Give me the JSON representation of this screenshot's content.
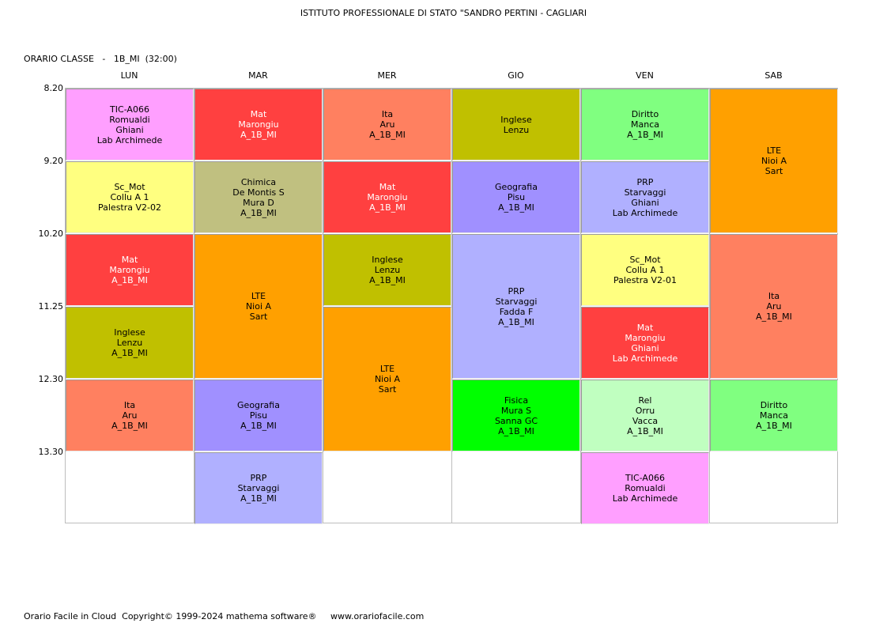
{
  "header": {
    "title": "ISTITUTO PROFESSIONALE DI STATO \"SANDRO PERTINI - CAGLIARI",
    "class_label": "ORARIO CLASSE   -   1B_MI  (32:00)"
  },
  "days": [
    "LUN",
    "MAR",
    "MER",
    "GIO",
    "VEN",
    "SAB"
  ],
  "times": [
    "8.20",
    "9.20",
    "10.20",
    "11.25",
    "12.30",
    "13.30"
  ],
  "colors": {
    "pink": "#ff9fff",
    "yellow": "#ffff80",
    "red": "#ff4040",
    "olive": "#c0c000",
    "salmon": "#ff8060",
    "khaki": "#c0c080",
    "orange": "#ffa000",
    "violet": "#a090ff",
    "lavender": "#b0b0ff",
    "green_bright": "#00ff00",
    "green_light": "#80ff80",
    "mint": "#c0ffc0"
  },
  "lessons": [
    {
      "day": 0,
      "start": 0,
      "span": 1,
      "color": "pink",
      "light": false,
      "lines": [
        "TIC-A066",
        "Romualdi",
        "Ghiani",
        "Lab Archimede"
      ]
    },
    {
      "day": 0,
      "start": 1,
      "span": 1,
      "color": "yellow",
      "light": false,
      "lines": [
        "Sc_Mot",
        "Collu A 1",
        "Palestra V2-02"
      ]
    },
    {
      "day": 0,
      "start": 2,
      "span": 1,
      "color": "red",
      "light": true,
      "lines": [
        "Mat",
        "Marongiu",
        "A_1B_MI"
      ]
    },
    {
      "day": 0,
      "start": 3,
      "span": 1,
      "color": "olive",
      "light": false,
      "lines": [
        "Inglese",
        "Lenzu",
        "A_1B_MI"
      ]
    },
    {
      "day": 0,
      "start": 4,
      "span": 1,
      "color": "salmon",
      "light": false,
      "lines": [
        "Ita",
        "Aru",
        "A_1B_MI"
      ]
    },
    {
      "day": 1,
      "start": 0,
      "span": 1,
      "color": "red",
      "light": true,
      "lines": [
        "Mat",
        "Marongiu",
        "A_1B_MI"
      ]
    },
    {
      "day": 1,
      "start": 1,
      "span": 1,
      "color": "khaki",
      "light": false,
      "lines": [
        "Chimica",
        "De Montis S",
        "Mura D",
        "A_1B_MI"
      ]
    },
    {
      "day": 1,
      "start": 2,
      "span": 2,
      "color": "orange",
      "light": false,
      "lines": [
        "LTE",
        "Nioi A",
        "Sart"
      ]
    },
    {
      "day": 1,
      "start": 4,
      "span": 1,
      "color": "violet",
      "light": false,
      "lines": [
        "Geografia",
        "Pisu",
        "A_1B_MI"
      ]
    },
    {
      "day": 1,
      "start": 5,
      "span": 1,
      "color": "lavender",
      "light": false,
      "lines": [
        "PRP",
        "Starvaggi",
        "A_1B_MI"
      ]
    },
    {
      "day": 2,
      "start": 0,
      "span": 1,
      "color": "salmon",
      "light": false,
      "lines": [
        "Ita",
        "Aru",
        "A_1B_MI"
      ]
    },
    {
      "day": 2,
      "start": 1,
      "span": 1,
      "color": "red",
      "light": true,
      "lines": [
        "Mat",
        "Marongiu",
        "A_1B_MI"
      ]
    },
    {
      "day": 2,
      "start": 2,
      "span": 1,
      "color": "olive",
      "light": false,
      "lines": [
        "Inglese",
        "Lenzu",
        "A_1B_MI"
      ]
    },
    {
      "day": 2,
      "start": 3,
      "span": 2,
      "color": "orange",
      "light": false,
      "lines": [
        "LTE",
        "Nioi A",
        "Sart"
      ]
    },
    {
      "day": 3,
      "start": 0,
      "span": 1,
      "color": "olive",
      "light": false,
      "lines": [
        "Inglese",
        "Lenzu"
      ]
    },
    {
      "day": 3,
      "start": 1,
      "span": 1,
      "color": "violet",
      "light": false,
      "lines": [
        "Geografia",
        "Pisu",
        "A_1B_MI"
      ]
    },
    {
      "day": 3,
      "start": 2,
      "span": 2,
      "color": "lavender",
      "light": false,
      "lines": [
        "PRP",
        "Starvaggi",
        "Fadda F",
        "A_1B_MI"
      ]
    },
    {
      "day": 3,
      "start": 4,
      "span": 1,
      "color": "green_bright",
      "light": false,
      "lines": [
        "Fisica",
        "Mura S",
        "Sanna GC",
        "A_1B_MI"
      ]
    },
    {
      "day": 4,
      "start": 0,
      "span": 1,
      "color": "green_light",
      "light": false,
      "lines": [
        "Diritto",
        "Manca",
        "A_1B_MI"
      ]
    },
    {
      "day": 4,
      "start": 1,
      "span": 1,
      "color": "lavender",
      "light": false,
      "lines": [
        "PRP",
        "Starvaggi",
        "Ghiani",
        "Lab Archimede"
      ]
    },
    {
      "day": 4,
      "start": 2,
      "span": 1,
      "color": "yellow",
      "light": false,
      "lines": [
        "Sc_Mot",
        "Collu A 1",
        "Palestra V2-01"
      ]
    },
    {
      "day": 4,
      "start": 3,
      "span": 1,
      "color": "red",
      "light": true,
      "lines": [
        "Mat",
        "Marongiu",
        "Ghiani",
        "Lab Archimede"
      ]
    },
    {
      "day": 4,
      "start": 4,
      "span": 1,
      "color": "mint",
      "light": false,
      "lines": [
        "Rel",
        "Orru",
        "Vacca",
        "A_1B_MI"
      ]
    },
    {
      "day": 4,
      "start": 5,
      "span": 1,
      "color": "pink",
      "light": false,
      "lines": [
        "TIC-A066",
        "Romualdi",
        "Lab Archimede"
      ]
    },
    {
      "day": 5,
      "start": 0,
      "span": 2,
      "color": "orange",
      "light": false,
      "lines": [
        "LTE",
        "Nioi A",
        "Sart"
      ]
    },
    {
      "day": 5,
      "start": 2,
      "span": 2,
      "color": "salmon",
      "light": false,
      "lines": [
        "Ita",
        "Aru",
        "A_1B_MI"
      ]
    },
    {
      "day": 5,
      "start": 4,
      "span": 1,
      "color": "green_light",
      "light": false,
      "lines": [
        "Diritto",
        "Manca",
        "A_1B_MI"
      ]
    }
  ],
  "footer": {
    "text": "Orario Facile in Cloud  Copyright© 1999-2024 mathema software®     www.orariofacile.com"
  }
}
